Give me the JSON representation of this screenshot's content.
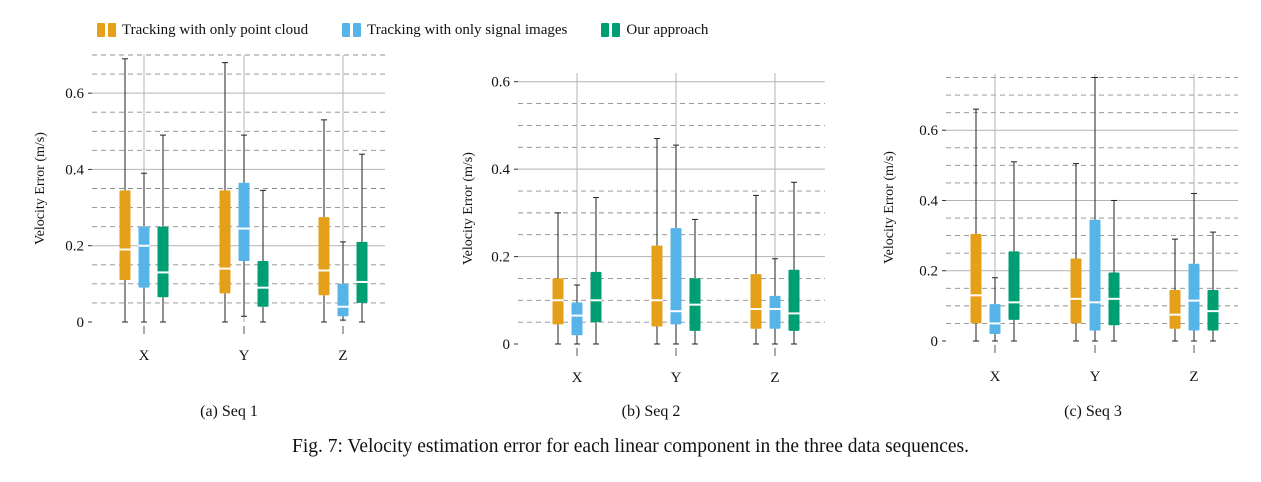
{
  "legend": {
    "items": [
      {
        "label": "Tracking with only point cloud",
        "color": "#E5A019"
      },
      {
        "label": "Tracking with only signal images",
        "color": "#56B4E9"
      },
      {
        "label": "Our approach",
        "color": "#009E73"
      }
    ]
  },
  "caption": "Fig. 7: Velocity estimation error for each linear component in the three data sequences.",
  "chart_data": [
    {
      "type": "box",
      "title": "(a) Seq 1",
      "ylabel": "Velocity Error (m/s)",
      "categories": [
        "X",
        "Y",
        "Z"
      ],
      "ylim": [
        0,
        0.7
      ],
      "yticks": [
        0,
        0.2,
        0.4,
        0.6
      ],
      "grid": true,
      "series": [
        {
          "name": "Tracking with only point cloud",
          "boxes": [
            {
              "min": 0.0,
              "q1": 0.11,
              "median": 0.19,
              "q3": 0.345,
              "max": 0.69
            },
            {
              "min": 0.0,
              "q1": 0.075,
              "median": 0.14,
              "q3": 0.345,
              "max": 0.68
            },
            {
              "min": 0.0,
              "q1": 0.07,
              "median": 0.135,
              "q3": 0.275,
              "max": 0.53
            }
          ]
        },
        {
          "name": "Tracking with only signal images",
          "boxes": [
            {
              "min": 0.0,
              "q1": 0.09,
              "median": 0.2,
              "q3": 0.25,
              "max": 0.39
            },
            {
              "min": 0.015,
              "q1": 0.16,
              "median": 0.245,
              "q3": 0.365,
              "max": 0.49
            },
            {
              "min": 0.005,
              "q1": 0.015,
              "median": 0.04,
              "q3": 0.1,
              "max": 0.21
            }
          ]
        },
        {
          "name": "Our approach",
          "boxes": [
            {
              "min": 0.0,
              "q1": 0.065,
              "median": 0.13,
              "q3": 0.25,
              "max": 0.49
            },
            {
              "min": 0.0,
              "q1": 0.04,
              "median": 0.09,
              "q3": 0.16,
              "max": 0.345
            },
            {
              "min": 0.0,
              "q1": 0.05,
              "median": 0.105,
              "q3": 0.21,
              "max": 0.44
            }
          ]
        }
      ]
    },
    {
      "type": "box",
      "title": "(b) Seq 2",
      "ylabel": "Velocity Error (m/s)",
      "categories": [
        "X",
        "Y",
        "Z"
      ],
      "ylim": [
        0,
        0.62
      ],
      "yticks": [
        0,
        0.2,
        0.4,
        0.6
      ],
      "grid": true,
      "series": [
        {
          "name": "Tracking with only point cloud",
          "boxes": [
            {
              "min": 0.0,
              "q1": 0.045,
              "median": 0.1,
              "q3": 0.15,
              "max": 0.3
            },
            {
              "min": 0.0,
              "q1": 0.04,
              "median": 0.1,
              "q3": 0.225,
              "max": 0.47
            },
            {
              "min": 0.0,
              "q1": 0.035,
              "median": 0.08,
              "q3": 0.16,
              "max": 0.34
            }
          ]
        },
        {
          "name": "Tracking with only signal images",
          "boxes": [
            {
              "min": 0.0,
              "q1": 0.02,
              "median": 0.065,
              "q3": 0.095,
              "max": 0.135
            },
            {
              "min": 0.0,
              "q1": 0.045,
              "median": 0.075,
              "q3": 0.265,
              "max": 0.455
            },
            {
              "min": 0.0,
              "q1": 0.035,
              "median": 0.08,
              "q3": 0.11,
              "max": 0.195
            }
          ]
        },
        {
          "name": "Our approach",
          "boxes": [
            {
              "min": 0.0,
              "q1": 0.05,
              "median": 0.1,
              "q3": 0.165,
              "max": 0.335
            },
            {
              "min": 0.0,
              "q1": 0.03,
              "median": 0.09,
              "q3": 0.15,
              "max": 0.285
            },
            {
              "min": 0.0,
              "q1": 0.03,
              "median": 0.07,
              "q3": 0.17,
              "max": 0.37
            }
          ]
        }
      ]
    },
    {
      "type": "box",
      "title": "(c) Seq 3",
      "ylabel": "Velocity Error (m/s)",
      "categories": [
        "X",
        "Y",
        "Z"
      ],
      "ylim": [
        0,
        0.76
      ],
      "yticks": [
        0,
        0.2,
        0.4,
        0.6
      ],
      "grid": true,
      "series": [
        {
          "name": "Tracking with only point cloud",
          "boxes": [
            {
              "min": 0.0,
              "q1": 0.05,
              "median": 0.13,
              "q3": 0.305,
              "max": 0.66
            },
            {
              "min": 0.0,
              "q1": 0.05,
              "median": 0.12,
              "q3": 0.235,
              "max": 0.505
            },
            {
              "min": 0.0,
              "q1": 0.035,
              "median": 0.075,
              "q3": 0.145,
              "max": 0.29
            }
          ]
        },
        {
          "name": "Tracking with only signal images",
          "boxes": [
            {
              "min": 0.0,
              "q1": 0.02,
              "median": 0.05,
              "q3": 0.105,
              "max": 0.18
            },
            {
              "min": 0.0,
              "q1": 0.03,
              "median": 0.11,
              "q3": 0.345,
              "max": 0.75
            },
            {
              "min": 0.0,
              "q1": 0.03,
              "median": 0.115,
              "q3": 0.22,
              "max": 0.42
            }
          ]
        },
        {
          "name": "Our approach",
          "boxes": [
            {
              "min": 0.0,
              "q1": 0.06,
              "median": 0.11,
              "q3": 0.255,
              "max": 0.51
            },
            {
              "min": 0.0,
              "q1": 0.045,
              "median": 0.12,
              "q3": 0.195,
              "max": 0.4
            },
            {
              "min": 0.0,
              "q1": 0.03,
              "median": 0.085,
              "q3": 0.145,
              "max": 0.31
            }
          ]
        }
      ]
    }
  ]
}
